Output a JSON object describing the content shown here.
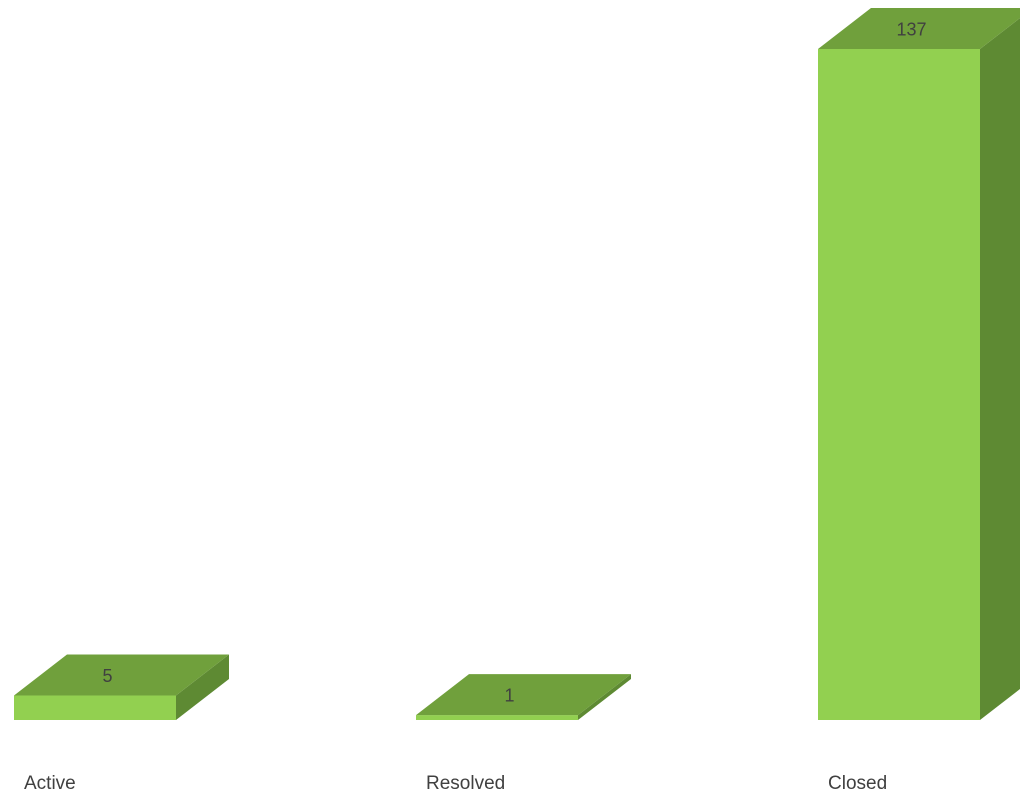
{
  "chart_data": {
    "type": "bar",
    "style": "3d-column",
    "categories": [
      "Active",
      "Resolved",
      "Closed"
    ],
    "values": [
      5,
      1,
      137
    ],
    "title": "",
    "xlabel": "",
    "ylabel": "",
    "ylim": [
      0,
      137
    ],
    "grid": false,
    "legend": "none",
    "data_labels": true,
    "colors": {
      "front": "#92d050",
      "top": "#70a03c",
      "side": "#5e8a33",
      "label_text": "#404040"
    }
  }
}
